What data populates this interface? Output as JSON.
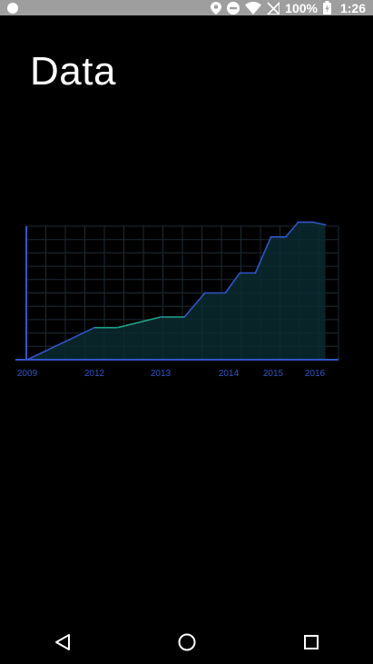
{
  "status_bar": {
    "battery_percent": "100%",
    "time": "1:26",
    "icons": [
      "app-notification-icon",
      "location-icon",
      "do-not-disturb-icon",
      "wifi-icon",
      "no-sim-icon",
      "battery-icon"
    ]
  },
  "page": {
    "title": "Data"
  },
  "chart_data": {
    "type": "area",
    "title": "",
    "xlabel": "",
    "ylabel": "",
    "x_ticks": [
      "2009",
      "2012",
      "2013",
      "2014",
      "2015",
      "2016"
    ],
    "x": [
      2009.0,
      2012.0,
      2012.35,
      2013.0,
      2013.35,
      2013.65,
      2013.95,
      2014.25,
      2014.6,
      2014.95,
      2015.3,
      2015.6,
      2015.95,
      2016.25
    ],
    "values": [
      0,
      24,
      24,
      32,
      32,
      50,
      50,
      65,
      65,
      92,
      92,
      103,
      103,
      101
    ],
    "ylim": [
      0,
      100
    ],
    "grid": true,
    "colors": {
      "line": "#2f56c9",
      "line_highlight": "#1fa38a",
      "fill": "#0b2a2f",
      "grid": "#1d2c33",
      "axis": "#2f56c9"
    }
  },
  "nav_bar": {
    "buttons": [
      "back-icon",
      "home-icon",
      "recents-icon"
    ]
  }
}
